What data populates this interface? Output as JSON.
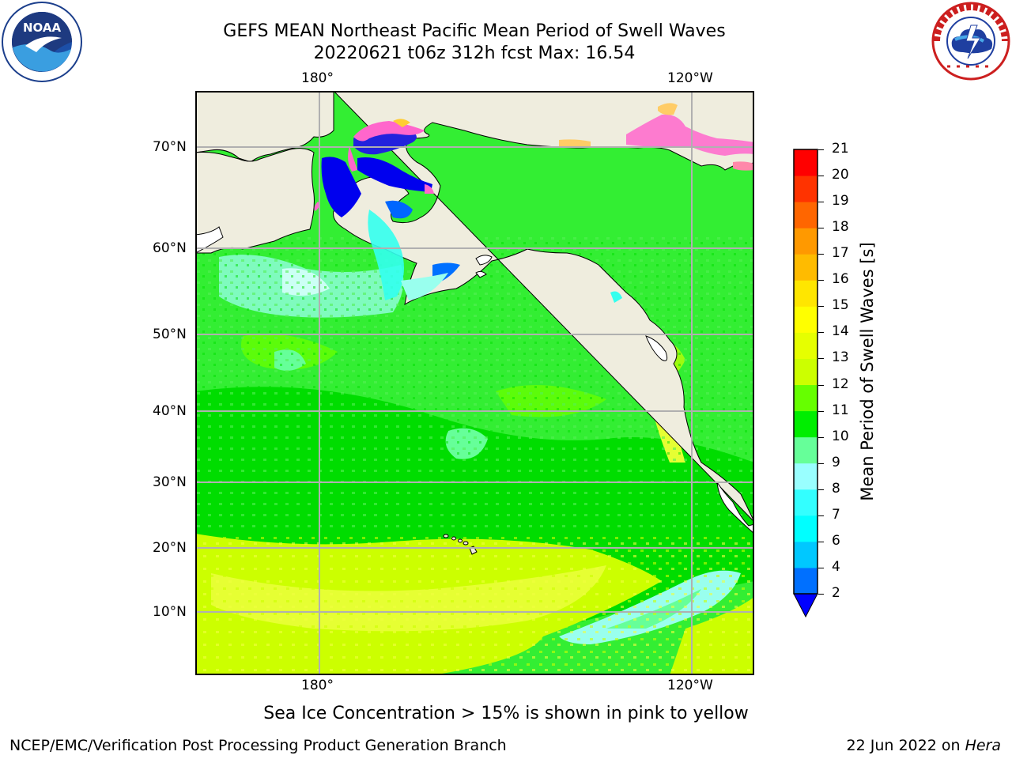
{
  "header": {
    "title_line1": "GEFS MEAN Northeast Pacific Mean Period of Swell Waves",
    "title_line2": "20220621 t06z 312h fcst   Max: 16.54"
  },
  "map": {
    "lon_labels_top": [
      "180°",
      "120°W"
    ],
    "lon_labels_bottom": [
      "180°",
      "120°W"
    ],
    "lat_labels": [
      "70°N",
      "60°N",
      "50°N",
      "40°N",
      "30°N",
      "20°N",
      "10°N"
    ],
    "colors": {
      "land": "#efedde",
      "ocean_low": "#33ee33",
      "ocean_mid": "#00dd00",
      "ocean_high": "#ccff00",
      "ocean_yellow": "#e6ff33",
      "ocean_cyan": "#99ffee",
      "ice_blue": "#0000ee",
      "ice_pink": "#ff66cc",
      "grid": "#b0b0b0",
      "coast": "#000000"
    }
  },
  "colorbar": {
    "label": "Mean Period of Swell Waves [s]",
    "ticks": [
      "2",
      "4",
      "6",
      "7",
      "8",
      "9",
      "10",
      "11",
      "12",
      "13",
      "14",
      "15",
      "16",
      "17",
      "18",
      "19",
      "20",
      "21"
    ],
    "colors": [
      "#0070ff",
      "#00c8ff",
      "#00ffff",
      "#33ffff",
      "#99ffff",
      "#66ff99",
      "#00ee00",
      "#66ff00",
      "#ccff00",
      "#e6ff00",
      "#ffff00",
      "#ffe600",
      "#ffbb00",
      "#ff9900",
      "#ff6600",
      "#ff3300",
      "#ff0000"
    ],
    "extend_color": "#0000ff"
  },
  "footnote": "Sea Ice Concentration > 15% is shown in pink to yellow",
  "credit": "NCEP/EMC/Verification Post Processing Product Generation Branch",
  "stamp": {
    "date_text": "22 Jun 2022 on ",
    "host": "Hera"
  }
}
